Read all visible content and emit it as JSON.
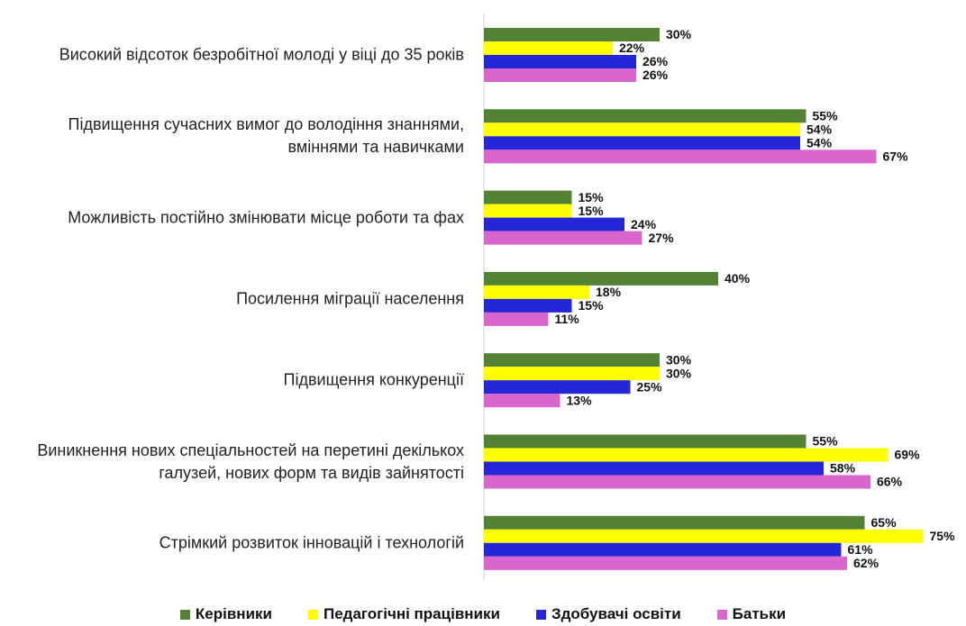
{
  "chart_data": {
    "type": "bar",
    "orientation": "horizontal",
    "categories": [
      "Високий відсоток безробітної молоді у віці до 35 років",
      "Підвищення сучасних вимог до володіння знаннями, вміннями та навичками",
      "Можливість постійно змінювати місце роботи та фах",
      "Посилення міграції населення",
      "Підвищення конкуренції",
      "Виникнення нових спеціальностей на перетині декількох галузей, нових форм та видів зайнятості",
      "Стрімкий розвиток інновацій і технологій"
    ],
    "series": [
      {
        "name": "Керівники",
        "color": "#548235",
        "values": [
          30,
          55,
          15,
          40,
          30,
          55,
          65
        ],
        "value_labels": [
          "30%",
          "55%",
          "15%",
          "40%",
          "30%",
          "55%",
          "65%"
        ]
      },
      {
        "name": "Педагогічні працівники",
        "color": "#ffff00",
        "values": [
          22,
          54,
          15,
          18,
          30,
          69,
          75
        ],
        "value_labels": [
          "22%",
          "54%",
          "15%",
          "18%",
          "30%",
          "69%",
          "75%"
        ]
      },
      {
        "name": "Здобувачі освіти",
        "color": "#2626d9",
        "values": [
          26,
          54,
          24,
          15,
          25,
          58,
          61
        ],
        "value_labels": [
          "26%",
          "54%",
          "24%",
          "15%",
          "25%",
          "58%",
          "61%"
        ]
      },
      {
        "name": "Батьки",
        "color": "#d966cc",
        "values": [
          26,
          67,
          27,
          11,
          13,
          66,
          62
        ],
        "value_labels": [
          "26%",
          "67%",
          "27%",
          "11%",
          "13%",
          "66%",
          "62%"
        ]
      }
    ],
    "legend": "bottom"
  }
}
